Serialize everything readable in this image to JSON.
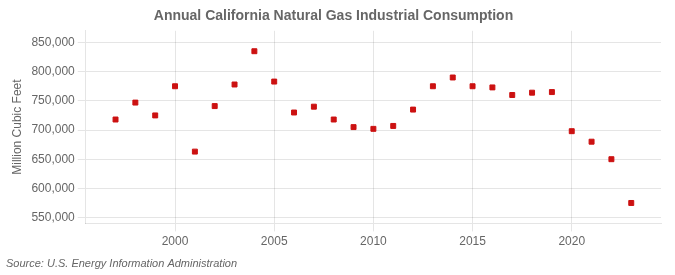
{
  "chart_data": {
    "type": "scatter",
    "title": "Annual California Natural Gas Industrial Consumption",
    "ylabel": "Million Cubic Feet",
    "annotation": "Source: U.S. Energy Information Administration",
    "x": [
      1997,
      1998,
      1999,
      2000,
      2001,
      2002,
      2003,
      2004,
      2005,
      2006,
      2007,
      2008,
      2009,
      2010,
      2011,
      2012,
      2013,
      2014,
      2015,
      2016,
      2017,
      2018,
      2019,
      2020,
      2021,
      2022,
      2023
    ],
    "values": [
      718000,
      747000,
      725000,
      775000,
      663000,
      741000,
      778000,
      835000,
      783000,
      730000,
      740000,
      718000,
      705000,
      702000,
      707000,
      735000,
      775000,
      790000,
      775000,
      773000,
      760000,
      764000,
      765000,
      698000,
      680000,
      650000,
      575000
    ],
    "color": "#cc1111",
    "marker": "square",
    "xlim": [
      1995.5,
      2024.5
    ],
    "xticks": [
      2000,
      2005,
      2010,
      2015,
      2020
    ],
    "ylim": [
      540000,
      870000
    ],
    "yticks": [
      {
        "value": 550000,
        "label": "550,000"
      },
      {
        "value": 600000,
        "label": "600,000"
      },
      {
        "value": 650000,
        "label": "650,000"
      },
      {
        "value": 700000,
        "label": "700,000"
      },
      {
        "value": 750000,
        "label": "750,000"
      },
      {
        "value": 800000,
        "label": "800,000"
      },
      {
        "value": 850000,
        "label": "850,000"
      }
    ],
    "grid": true
  }
}
